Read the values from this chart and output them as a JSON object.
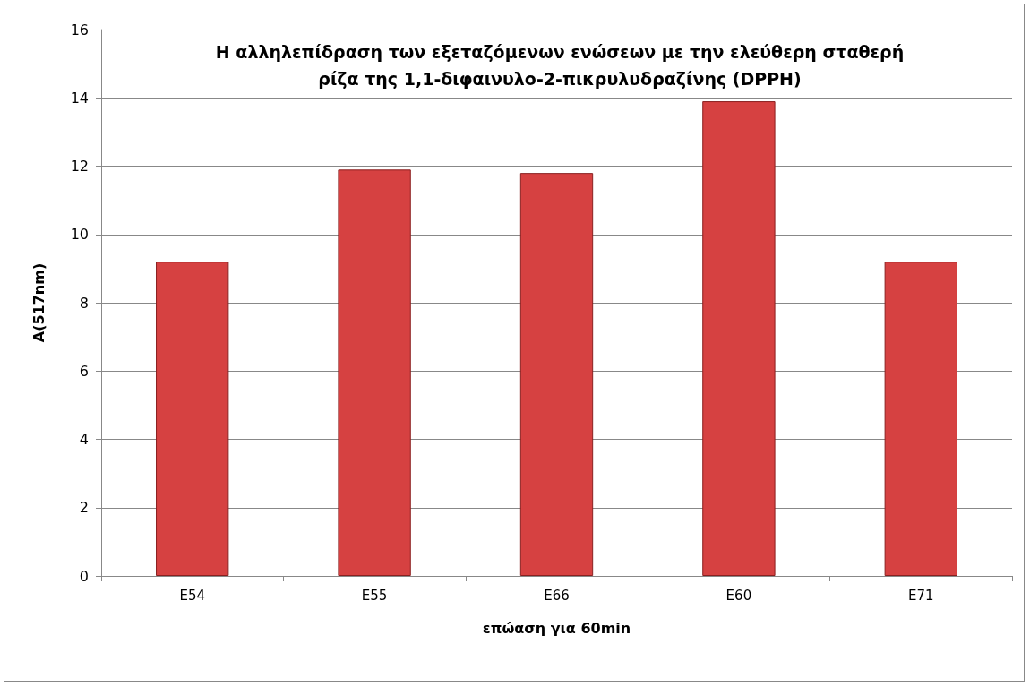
{
  "chart_data": {
    "type": "bar",
    "title": "Η αλληλεπίδραση των εξεταζόμενων ενώσεων με την ελεύθερη σταθερή\nρίζα της 1,1-διφαινυλο-2-πικρυλυδραζίνης (DPPH)",
    "xlabel": "επώαση για 60min",
    "ylabel": "A(517nm)",
    "categories": [
      "E54",
      "E55",
      "E66",
      "E60",
      "E71"
    ],
    "values": [
      9.2,
      11.9,
      11.8,
      13.9,
      9.2
    ],
    "color": "#d64141",
    "ylim": [
      0,
      16
    ],
    "yticks": [
      0,
      2,
      4,
      6,
      8,
      10,
      12,
      14,
      16
    ],
    "grid": "y"
  }
}
